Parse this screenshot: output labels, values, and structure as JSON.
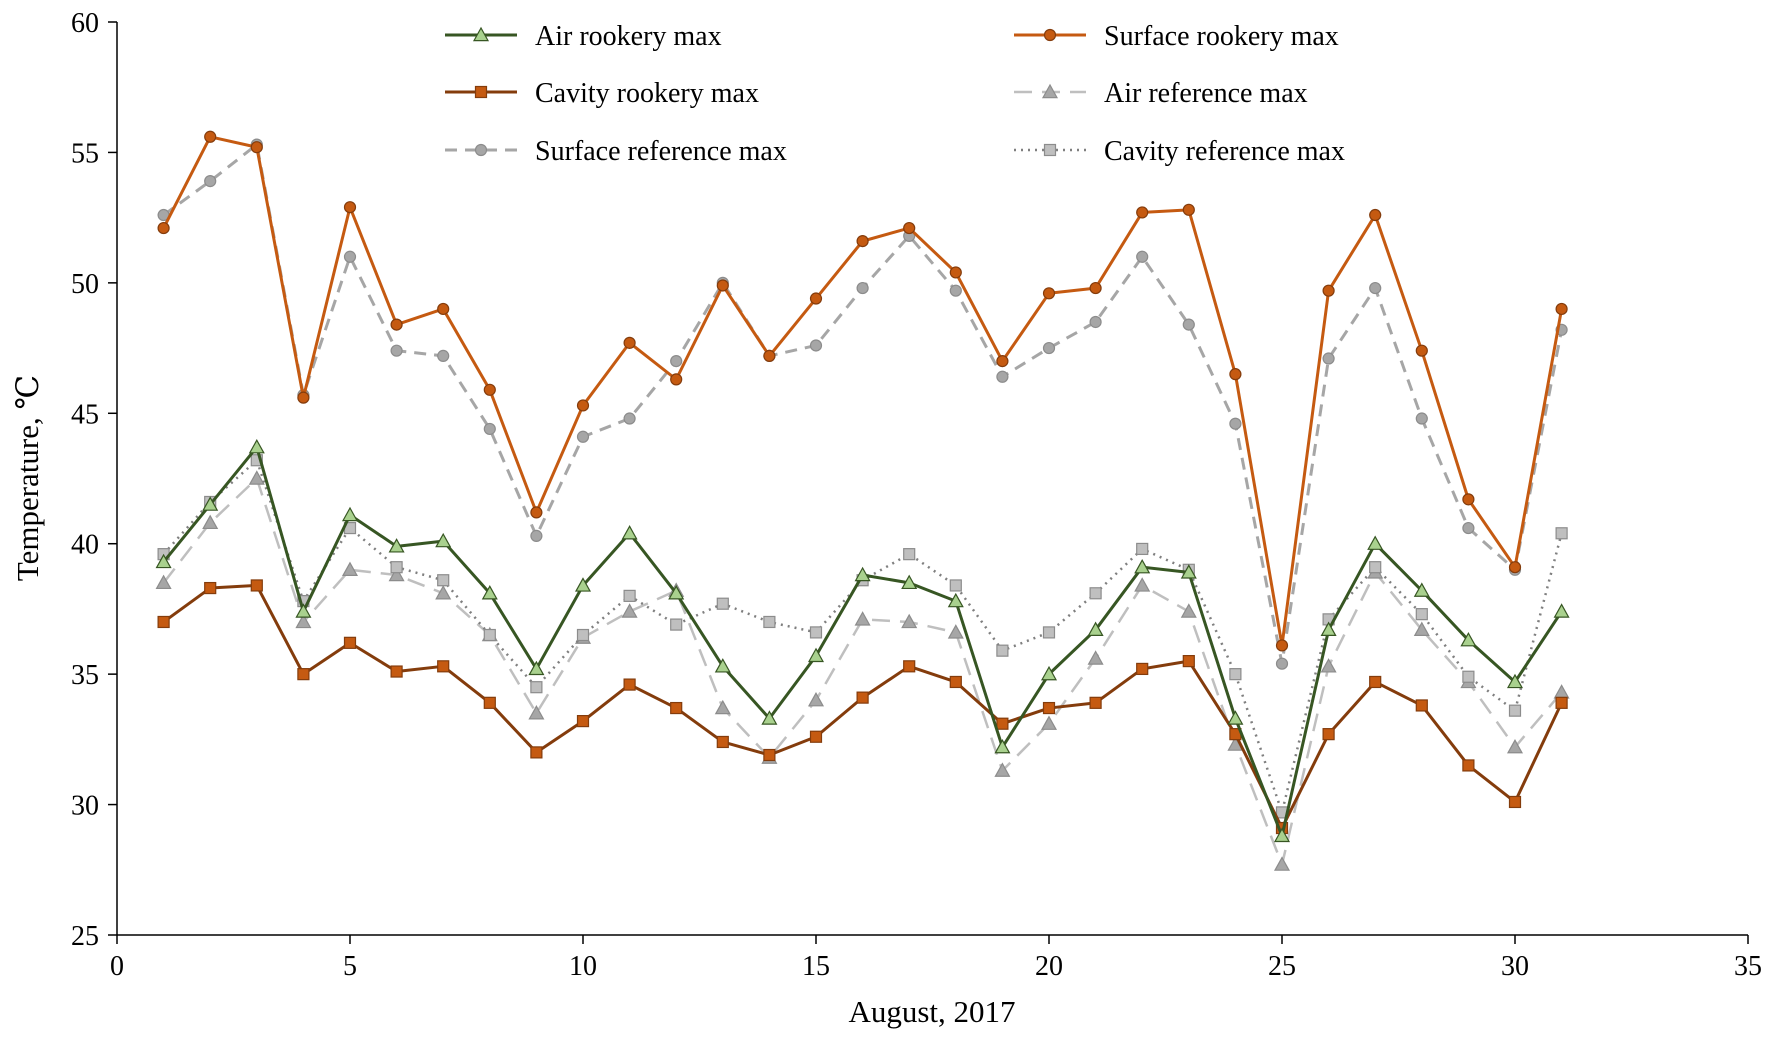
{
  "chart_data": {
    "type": "line",
    "title": "",
    "xlabel": "August, 2017",
    "ylabel": "Temperature, ℃",
    "xlim": [
      0,
      35
    ],
    "ylim": [
      25,
      60
    ],
    "xticks": [
      0,
      5,
      10,
      15,
      20,
      25,
      30,
      35
    ],
    "yticks": [
      25,
      30,
      35,
      40,
      45,
      50,
      55,
      60
    ],
    "grid": false,
    "legend_position": "top",
    "x": [
      1,
      2,
      3,
      4,
      5,
      6,
      7,
      8,
      9,
      10,
      11,
      12,
      13,
      14,
      15,
      16,
      17,
      18,
      19,
      20,
      21,
      22,
      23,
      24,
      25,
      26,
      27,
      28,
      29,
      30,
      31
    ],
    "series": [
      {
        "name": "Air rookery max",
        "color": "#375623",
        "marker_fill": "#a9d18e",
        "marker": "triangle",
        "dash": "solid",
        "values": [
          39.3,
          41.5,
          43.7,
          37.4,
          41.1,
          39.9,
          40.1,
          38.1,
          35.2,
          38.4,
          40.4,
          38.1,
          35.3,
          33.3,
          35.7,
          38.8,
          38.5,
          37.8,
          32.2,
          35.0,
          36.7,
          39.1,
          38.9,
          33.3,
          28.8,
          36.7,
          40.0,
          38.2,
          36.3,
          34.7,
          37.4
        ]
      },
      {
        "name": "Surface rookery max",
        "color": "#c55a11",
        "marker_fill": "#c55a11",
        "marker": "circle",
        "dash": "solid",
        "values": [
          52.1,
          55.6,
          55.2,
          45.6,
          52.9,
          48.4,
          49.0,
          45.9,
          41.2,
          45.3,
          47.7,
          46.3,
          49.9,
          47.2,
          49.4,
          51.6,
          52.1,
          50.4,
          47.0,
          49.6,
          49.8,
          52.7,
          52.8,
          46.5,
          36.1,
          49.7,
          52.6,
          47.4,
          41.7,
          39.1,
          49.0
        ]
      },
      {
        "name": "Cavity rookery max",
        "color": "#843c0c",
        "marker_fill": "#c55a11",
        "marker": "square",
        "dash": "solid",
        "values": [
          37.0,
          38.3,
          38.4,
          35.0,
          36.2,
          35.1,
          35.3,
          33.9,
          32.0,
          33.2,
          34.6,
          33.7,
          32.4,
          31.9,
          32.6,
          34.1,
          35.3,
          34.7,
          33.1,
          33.7,
          33.9,
          35.2,
          35.5,
          32.7,
          29.1,
          32.7,
          34.7,
          33.8,
          31.5,
          30.1,
          33.9
        ]
      },
      {
        "name": "Air reference max",
        "color": "#bfbfbf",
        "marker_fill": "#a6a6a6",
        "marker": "triangle",
        "dash": "long-dash",
        "values": [
          38.5,
          40.8,
          42.5,
          37.0,
          39.0,
          38.8,
          38.1,
          36.5,
          33.5,
          36.4,
          37.4,
          38.2,
          33.7,
          31.8,
          34.0,
          37.1,
          37.0,
          36.6,
          31.3,
          33.1,
          35.6,
          38.4,
          37.4,
          32.3,
          27.7,
          35.3,
          38.9,
          36.7,
          34.7,
          32.2,
          34.3
        ]
      },
      {
        "name": "Surface reference max",
        "color": "#a6a6a6",
        "marker_fill": "#a6a6a6",
        "marker": "circle",
        "dash": "dash",
        "values": [
          52.6,
          53.9,
          55.3,
          45.7,
          51.0,
          47.4,
          47.2,
          44.4,
          40.3,
          44.1,
          44.8,
          47.0,
          50.0,
          47.2,
          47.6,
          49.8,
          51.8,
          49.7,
          46.4,
          47.5,
          48.5,
          51.0,
          48.4,
          44.6,
          35.4,
          47.1,
          49.8,
          44.8,
          40.6,
          39.0,
          48.2
        ]
      },
      {
        "name": "Cavity reference max",
        "color": "#7f7f7f",
        "marker_fill": "#bfbfbf",
        "marker": "square",
        "dash": "dot",
        "values": [
          39.6,
          41.6,
          43.2,
          37.8,
          40.6,
          39.1,
          38.6,
          36.5,
          34.5,
          36.5,
          38.0,
          36.9,
          37.7,
          37.0,
          36.6,
          38.6,
          39.6,
          38.4,
          35.9,
          36.6,
          38.1,
          39.8,
          39.0,
          35.0,
          29.7,
          37.1,
          39.1,
          37.3,
          34.9,
          33.6,
          40.4
        ]
      }
    ]
  }
}
